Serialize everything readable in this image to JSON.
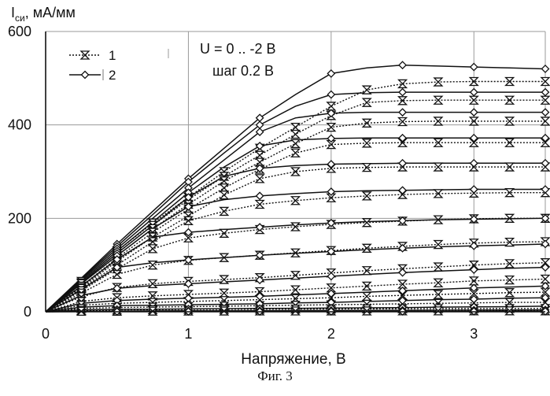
{
  "figure_caption": "Фиг. 3",
  "chart_data": {
    "type": "line",
    "ylabel_main": "I",
    "ylabel_sub": "си",
    "ylabel_rest": ", мА/мм",
    "xlabel": "Напряжение, В",
    "xlim": [
      0,
      3.5
    ],
    "ylim": [
      0,
      600
    ],
    "x_ticks": [
      0,
      1,
      2,
      3
    ],
    "x_tick_labels": [
      "0",
      "1",
      "2",
      "3"
    ],
    "y_ticks": [
      0,
      200,
      400,
      600
    ],
    "y_tick_labels": [
      "0",
      "200",
      "400",
      "600"
    ],
    "grid": "vertical and horizontal at major ticks",
    "legend_position": "top-left",
    "legend": [
      {
        "label": "1",
        "marker": "hourglass",
        "style": "dotted"
      },
      {
        "label": "2",
        "marker": "diamond",
        "style": "solid"
      }
    ],
    "annotation_line1": "U = 0 .. -2 В",
    "annotation_line2": "шаг 0.2 В",
    "x": [
      0,
      0.25,
      0.5,
      0.75,
      1,
      1.25,
      1.5,
      1.75,
      2,
      2.25,
      2.5,
      2.75,
      3,
      3.25,
      3.5
    ],
    "sat_levels_series1": [
      493,
      453,
      408,
      362,
      310,
      255,
      200,
      150,
      105,
      70,
      42,
      20,
      7,
      2
    ],
    "sat_levels_series2": [
      520,
      470,
      427,
      372,
      318,
      262,
      200,
      145,
      95,
      55,
      30,
      12,
      4,
      1
    ],
    "series": [
      {
        "name": "1",
        "style": "dotted",
        "marker": "hourglass",
        "curves": [
          {
            "values": [
              0,
              65,
              130,
              190,
              245,
              300,
              350,
              395,
              440,
              475,
              488,
              492,
              493,
              493,
              493
            ]
          },
          {
            "values": [
              0,
              62,
              125,
              185,
              240,
              290,
              335,
              380,
              420,
              448,
              452,
              453,
              453,
              453,
              453
            ]
          },
          {
            "values": [
              0,
              60,
              120,
              178,
              230,
              280,
              320,
              360,
              395,
              404,
              407,
              408,
              408,
              408,
              408
            ]
          },
          {
            "values": [
              0,
              55,
              115,
              170,
              220,
              265,
              305,
              340,
              358,
              361,
              362,
              362,
              362,
              362,
              362
            ]
          },
          {
            "values": [
              0,
              52,
              108,
              160,
              205,
              250,
              285,
              300,
              307,
              309,
              310,
              310,
              310,
              310,
              310
            ]
          },
          {
            "values": [
              0,
              50,
              100,
              150,
              195,
              215,
              230,
              238,
              244,
              248,
              251,
              253,
              254,
              255,
              255
            ]
          },
          {
            "values": [
              0,
              45,
              92,
              135,
              158,
              168,
              176,
              182,
              187,
              191,
              194,
              197,
              199,
              200,
              200
            ]
          },
          {
            "values": [
              0,
              40,
              80,
              100,
              110,
              116,
              121,
              126,
              131,
              136,
              140,
              144,
              147,
              149,
              150
            ]
          },
          {
            "values": [
              0,
              32,
              52,
              60,
              65,
              69,
              73,
              78,
              83,
              88,
              92,
              96,
              100,
              103,
              105
            ]
          },
          {
            "values": [
              0,
              22,
              30,
              34,
              37,
              40,
              43,
              47,
              51,
              55,
              59,
              62,
              66,
              68,
              70
            ]
          },
          {
            "values": [
              0,
              14,
              18,
              20,
              22,
              24,
              26,
              28,
              30,
              33,
              35,
              37,
              39,
              41,
              42
            ]
          },
          {
            "values": [
              0,
              7,
              9,
              10,
              11,
              12,
              13,
              14,
              15,
              16,
              17,
              18,
              19,
              20,
              20
            ]
          },
          {
            "values": [
              0,
              3,
              4,
              4.5,
              5,
              5.2,
              5.5,
              5.8,
              6,
              6.3,
              6.5,
              6.7,
              6.8,
              7,
              7
            ]
          },
          {
            "values": [
              0,
              1,
              1.2,
              1.4,
              1.5,
              1.6,
              1.7,
              1.7,
              1.8,
              1.8,
              1.9,
              1.9,
              2,
              2,
              2
            ]
          }
        ]
      },
      {
        "name": "2",
        "style": "solid",
        "marker": "diamond",
        "curves": [
          {
            "values": [
              0,
              72,
              145,
              215,
              285,
              350,
              415,
              465,
              510,
              522,
              528,
              526,
              524,
              522,
              520
            ]
          },
          {
            "values": [
              0,
              70,
              140,
              208,
              278,
              340,
              400,
              440,
              465,
              469,
              470,
              470,
              470,
              470,
              470
            ]
          },
          {
            "values": [
              0,
              68,
              135,
              200,
              265,
              325,
              385,
              415,
              425,
              427,
              427,
              427,
              427,
              427,
              427
            ]
          },
          {
            "values": [
              0,
              65,
              130,
              192,
              255,
              310,
              355,
              368,
              371,
              372,
              372,
              372,
              372,
              372,
              372
            ]
          },
          {
            "values": [
              0,
              62,
              125,
              185,
              245,
              290,
              307,
              313,
              316,
              317,
              318,
              318,
              318,
              318,
              318
            ]
          },
          {
            "values": [
              0,
              60,
              120,
              178,
              225,
              240,
              248,
              253,
              257,
              259,
              260,
              261,
              262,
              262,
              262
            ]
          },
          {
            "values": [
              0,
              55,
              112,
              160,
              170,
              176,
              181,
              186,
              190,
              193,
              195,
              197,
              198,
              199,
              200
            ]
          },
          {
            "values": [
              0,
              48,
              95,
              105,
              111,
              116,
              121,
              125,
              129,
              133,
              136,
              139,
              141,
              143,
              145
            ]
          },
          {
            "values": [
              0,
              35,
              50,
              56,
              60,
              64,
              68,
              72,
              76,
              80,
              84,
              87,
              90,
              93,
              95
            ]
          },
          {
            "values": [
              0,
              18,
              24,
              27,
              29,
              31,
              33,
              36,
              39,
              42,
              45,
              48,
              51,
              53,
              55
            ]
          },
          {
            "values": [
              0,
              10,
              13,
              14,
              15,
              16,
              17,
              19,
              20,
              22,
              24,
              26,
              27,
              29,
              30
            ]
          },
          {
            "values": [
              0,
              4,
              5,
              5.5,
              6,
              6.5,
              7,
              7.5,
              8,
              8.5,
              9,
              10,
              10.5,
              11,
              12
            ]
          },
          {
            "values": [
              0,
              1,
              1.5,
              1.8,
              2,
              2.2,
              2.4,
              2.6,
              2.8,
              3,
              3.2,
              3.4,
              3.6,
              3.8,
              4
            ]
          },
          {
            "values": [
              0,
              0.3,
              0.4,
              0.5,
              0.5,
              0.6,
              0.6,
              0.7,
              0.7,
              0.8,
              0.8,
              0.9,
              0.9,
              1,
              1
            ]
          }
        ]
      }
    ]
  }
}
